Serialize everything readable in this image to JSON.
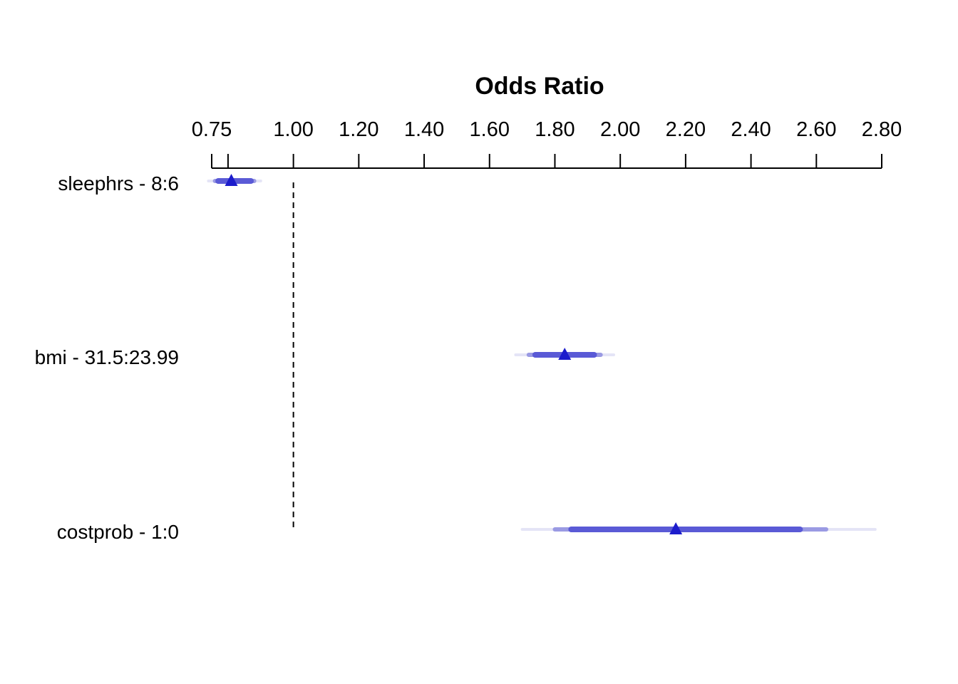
{
  "chart_data": {
    "type": "forest",
    "title": "",
    "xlabel": "Odds Ratio",
    "x_axis_position": "top",
    "xlim": [
      0.75,
      2.8
    ],
    "xticks": [
      0.75,
      0.8,
      1.0,
      1.2,
      1.4,
      1.6,
      1.8,
      2.0,
      2.2,
      2.4,
      2.6,
      2.8
    ],
    "xtick_labels": [
      "0.75",
      "",
      "1.00",
      "1.20",
      "1.40",
      "1.60",
      "1.80",
      "2.00",
      "2.20",
      "2.40",
      "2.60",
      "2.80"
    ],
    "reference_line": 1.0,
    "confidence_levels": [
      0.99,
      0.95,
      0.9
    ],
    "colors": {
      "point": "#1c1ccc",
      "ci_inner": "#5a5ad6",
      "ci_mid": "#9a9ae3",
      "ci_outer": "#e4e4f6"
    },
    "rows": [
      {
        "label": "sleephrs - 8:6",
        "estimate": 0.81,
        "ci": [
          [
            0.74,
            0.9
          ],
          [
            0.76,
            0.88
          ],
          [
            0.77,
            0.87
          ]
        ]
      },
      {
        "label": "bmi - 31.5:23.99",
        "estimate": 1.83,
        "ci": [
          [
            1.68,
            1.98
          ],
          [
            1.72,
            1.94
          ],
          [
            1.74,
            1.92
          ]
        ]
      },
      {
        "label": "costprob - 1:0",
        "estimate": 2.17,
        "ci": [
          [
            1.7,
            2.78
          ],
          [
            1.8,
            2.63
          ],
          [
            1.85,
            2.55
          ]
        ]
      }
    ]
  }
}
